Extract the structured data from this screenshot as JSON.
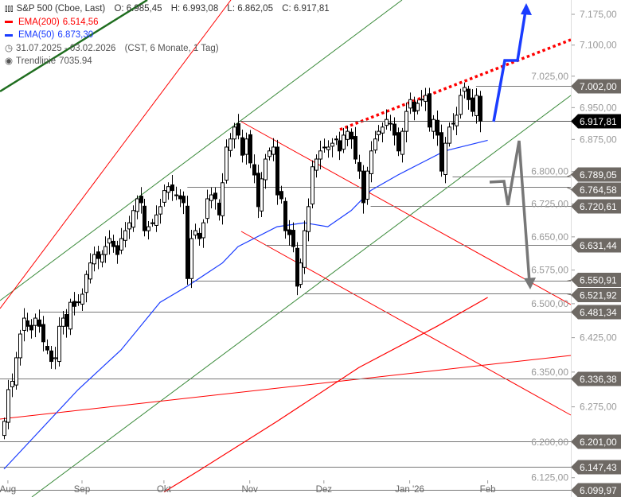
{
  "legend": {
    "symbol": "S&P 500 (Cboe, Last)",
    "open": "O: 6.985,45",
    "high": "H: 6.993,08",
    "low": "L: 6.862,05",
    "close": "C: 6.917,81",
    "ema200_label": "EMA(200)",
    "ema200_value": "6.514,56",
    "ema50_label": "EMA(50)",
    "ema50_value": "6.873,30",
    "range": "31.07.2025 - 03.02.2026",
    "range_info": "(CST, 6 Monate, 1 Tag)",
    "trend_label": "Trendlinie",
    "trend_value": "7035.94"
  },
  "colors": {
    "ema200": "#ff0000",
    "ema50": "#1a3cff",
    "level_label": "#6e6964",
    "last_label": "#000000",
    "channel": "#3a8a3a"
  },
  "chart_data": {
    "type": "candlestick",
    "title": "S&P 500 (Cboe, Last)",
    "scale": "log",
    "ylim": [
      6095,
      7200
    ],
    "y_ticks": [
      "7.175,00",
      "7.100,00",
      "7.025,00",
      "6.950,00",
      "6.875,00",
      "6.800,00",
      "6.725,00",
      "6.650,00",
      "6.575,00",
      "6.500,00",
      "6.425,00",
      "6.350,00",
      "6.275,00",
      "6.200,00",
      "6.125,00"
    ],
    "y_tick_values": [
      7175,
      7100,
      7025,
      6950,
      6875,
      6800,
      6725,
      6650,
      6575,
      6500,
      6425,
      6350,
      6275,
      6200,
      6125
    ],
    "x_ticks": [
      {
        "label": "Aug",
        "index": 1
      },
      {
        "label": "Sep",
        "index": 20
      },
      {
        "label": "Okt",
        "index": 41
      },
      {
        "label": "Nov",
        "index": 63
      },
      {
        "label": "Dez",
        "index": 82
      },
      {
        "label": "Jan '26",
        "index": 104
      },
      {
        "label": "Feb",
        "index": 124
      }
    ],
    "closes": [
      6244,
      6312,
      6330,
      6381,
      6433,
      6468,
      6450,
      6442,
      6468,
      6450,
      6416,
      6398,
      6373,
      6381,
      6450,
      6468,
      6450,
      6503,
      6494,
      6503,
      6521,
      6565,
      6591,
      6610,
      6601,
      6610,
      6628,
      6646,
      6628,
      6610,
      6646,
      6664,
      6682,
      6710,
      6737,
      6728,
      6664,
      6673,
      6682,
      6700,
      6719,
      6756,
      6765,
      6756,
      6746,
      6737,
      6728,
      6556,
      6646,
      6664,
      6646,
      6682,
      6737,
      6746,
      6737,
      6700,
      6774,
      6857,
      6876,
      6904,
      6885,
      6838,
      6876,
      6820,
      6792,
      6719,
      6783,
      6829,
      6848,
      6857,
      6746,
      6737,
      6664,
      6655,
      6628,
      6539,
      6591,
      6664,
      6719,
      6811,
      6829,
      6848,
      6857,
      6857,
      6866,
      6876,
      6848,
      6885,
      6894,
      6876,
      6829,
      6801,
      6728,
      6801,
      6848,
      6876,
      6894,
      6904,
      6922,
      6913,
      6885,
      6848,
      6894,
      6941,
      6969,
      6941,
      6960,
      6969,
      6979,
      6904,
      6922,
      6885,
      6801,
      6866,
      6904,
      6913,
      6932,
      6979,
      6998,
      6969,
      6941,
      6979,
      6918
    ],
    "ema50": [
      [
        0,
        6143
      ],
      [
        19,
        6312
      ],
      [
        30,
        6398
      ],
      [
        40,
        6503
      ],
      [
        47,
        6539
      ],
      [
        56,
        6591
      ],
      [
        60,
        6628
      ],
      [
        70,
        6673
      ],
      [
        77,
        6682
      ],
      [
        83,
        6673
      ],
      [
        89,
        6710
      ],
      [
        94,
        6756
      ],
      [
        101,
        6792
      ],
      [
        107,
        6820
      ],
      [
        113,
        6848
      ],
      [
        124,
        6873
      ]
    ],
    "ema200": [
      [
        41,
        6095
      ],
      [
        50,
        6140
      ],
      [
        70,
        6244
      ],
      [
        91,
        6360
      ],
      [
        111,
        6450
      ],
      [
        124,
        6514
      ]
    ],
    "levels": [
      {
        "value": 7002.0,
        "label": "7.002,00",
        "from": 121
      },
      {
        "value": 6917.81,
        "label": "6.917,81",
        "from": 60,
        "last": true
      },
      {
        "value": 6789.05,
        "label": "6.789,05",
        "from": 115
      },
      {
        "value": 6764.58,
        "label": "6.764,58",
        "from": 47
      },
      {
        "value": 6720.61,
        "label": "6.720,61",
        "from": 94
      },
      {
        "value": 6631.44,
        "label": "6.631,44",
        "from": 67
      },
      {
        "value": 6550.91,
        "label": "6.550,91",
        "from": 48
      },
      {
        "value": 6521.92,
        "label": "6.521,92",
        "from": 77
      },
      {
        "value": 6481.34,
        "label": "6.481,34",
        "from": 9
      },
      {
        "value": 6336.38,
        "label": "6.336,38",
        "from": -1
      },
      {
        "value": 6201.0,
        "label": "6.201,00",
        "from": -1
      },
      {
        "value": 6147.43,
        "label": "6.147,43",
        "from": -1
      },
      {
        "value": 6099.97,
        "label": "6.099,97",
        "from": -1
      }
    ]
  }
}
